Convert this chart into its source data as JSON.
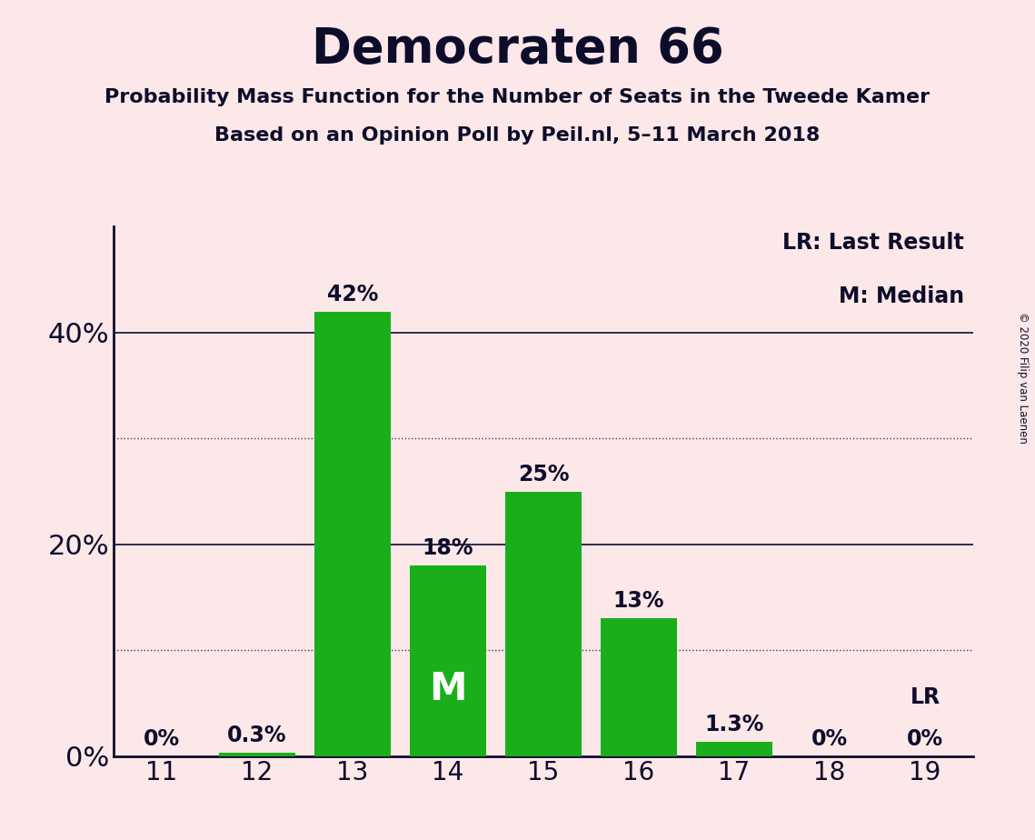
{
  "title": "Democraten 66",
  "subtitle1": "Probability Mass Function for the Number of Seats in the Tweede Kamer",
  "subtitle2": "Based on an Opinion Poll by Peil.nl, 5–11 March 2018",
  "copyright": "© 2020 Filip van Laenen",
  "seats": [
    11,
    12,
    13,
    14,
    15,
    16,
    17,
    18,
    19
  ],
  "values": [
    0.0,
    0.3,
    42.0,
    18.0,
    25.0,
    13.0,
    1.3,
    0.0,
    0.0
  ],
  "bar_color": "#1aaf1a",
  "background_color": "#fce8e8",
  "text_color": "#0d0d2b",
  "median_seat": 14,
  "lr_seat": 19,
  "legend_lr": "LR: Last Result",
  "legend_m": "M: Median",
  "yticks": [
    0,
    20,
    40
  ],
  "solid_lines": [
    20,
    40
  ],
  "dotted_lines": [
    10,
    30
  ],
  "ylim": [
    0,
    50
  ]
}
